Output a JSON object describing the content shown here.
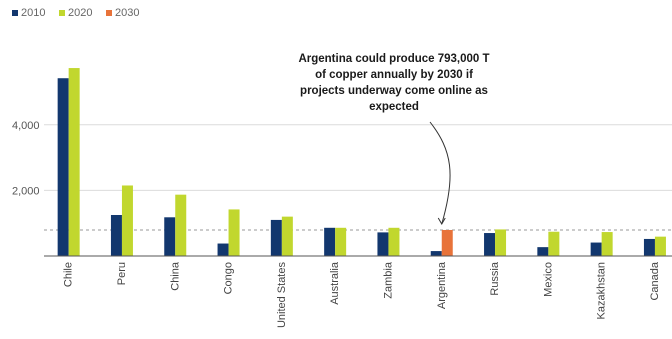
{
  "chart_data": {
    "type": "bar",
    "title": "",
    "xlabel": "",
    "ylabel": "",
    "ylim": [
      0,
      5900
    ],
    "yticks": [
      2000,
      4000
    ],
    "ytick_labels": [
      "2,000",
      "4,000"
    ],
    "reference_line": 793,
    "categories": [
      "Chile",
      "Peru",
      "China",
      "Congo",
      "United States",
      "Australia",
      "Zambia",
      "Argentina",
      "Russia",
      "Mexico",
      "Kazakhstan",
      "Canada"
    ],
    "series": [
      {
        "name": "2010",
        "color": "#12376e",
        "values": [
          5420,
          1250,
          1180,
          380,
          1100,
          860,
          720,
          150,
          700,
          270,
          410,
          520
        ]
      },
      {
        "name": "2020",
        "color": "#c1d72e",
        "values": [
          5730,
          2150,
          1870,
          1420,
          1200,
          860,
          860,
          null,
          810,
          740,
          730,
          590
        ]
      },
      {
        "name": "2030",
        "color": "#e8733a",
        "values": [
          null,
          null,
          null,
          null,
          null,
          null,
          null,
          793,
          null,
          null,
          null,
          null
        ]
      }
    ],
    "legend_position": "top-left",
    "grid": true,
    "annotation": {
      "lines": [
        "Argentina could produce 793,000 T",
        "of copper annually by 2030 if",
        "projects underway come online as",
        "expected"
      ],
      "target": "Argentina"
    }
  }
}
